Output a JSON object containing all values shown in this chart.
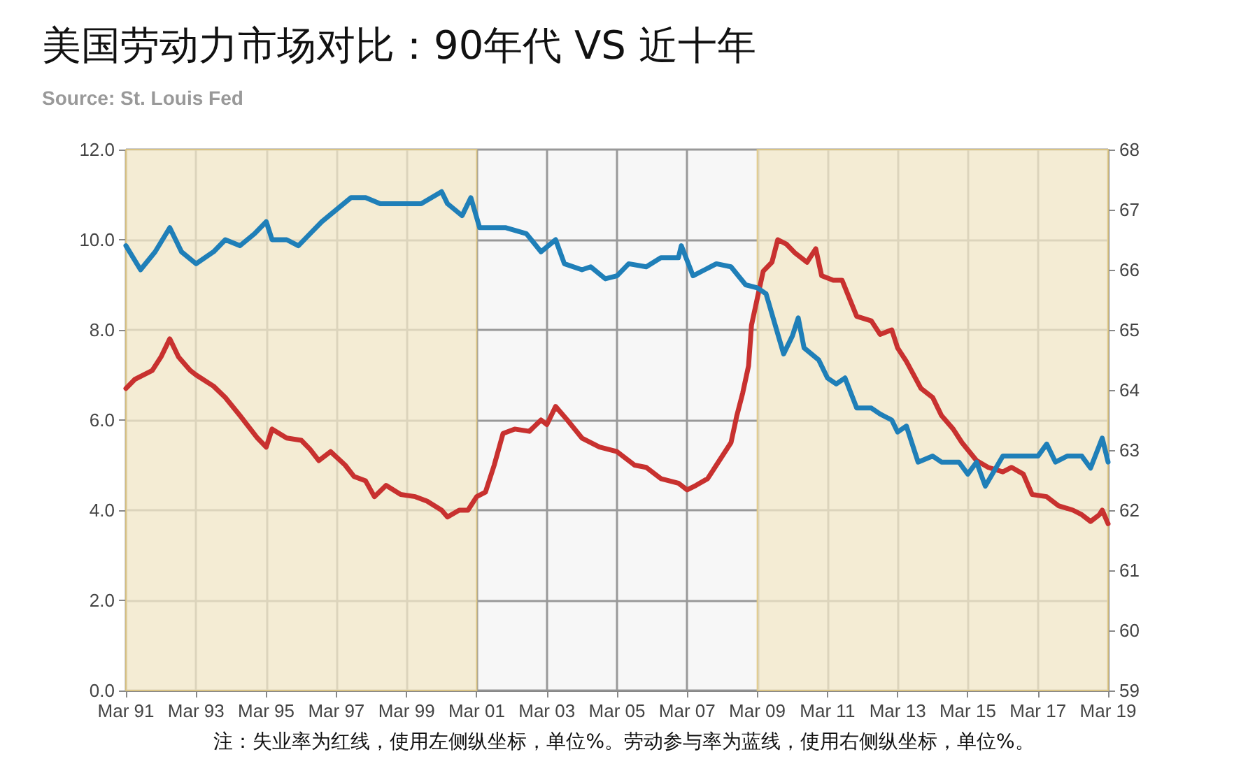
{
  "chart_data": {
    "type": "line",
    "title": "美国劳动力市场对比：90年代 VS 近十年",
    "annotations": [
      "Source: St. Louis Fed",
      "注：失业率为红线，使用左侧纵坐标，单位%。劳动参与率为蓝线，使用右侧纵坐标，单位%。"
    ],
    "xlim": [
      "1991-03",
      "2019-03"
    ],
    "xticks": [
      {
        "value": "1991-03",
        "label": "Mar 91"
      },
      {
        "value": "1993-03",
        "label": "Mar 93"
      },
      {
        "value": "1995-03",
        "label": "Mar 95"
      },
      {
        "value": "1997-03",
        "label": "Mar 97"
      },
      {
        "value": "1999-03",
        "label": "Mar 99"
      },
      {
        "value": "2001-03",
        "label": "Mar 01"
      },
      {
        "value": "2003-03",
        "label": "Mar 03"
      },
      {
        "value": "2005-03",
        "label": "Mar 05"
      },
      {
        "value": "2007-03",
        "label": "Mar 07"
      },
      {
        "value": "2009-03",
        "label": "Mar 09"
      },
      {
        "value": "2011-03",
        "label": "Mar 11"
      },
      {
        "value": "2013-03",
        "label": "Mar 13"
      },
      {
        "value": "2015-03",
        "label": "Mar 15"
      },
      {
        "value": "2017-03",
        "label": "Mar 17"
      },
      {
        "value": "2019-03",
        "label": "Mar 19"
      }
    ],
    "ylim": [
      0,
      12
    ],
    "yticks": [
      {
        "value": 0,
        "label": "0.0"
      },
      {
        "value": 2,
        "label": "2.0"
      },
      {
        "value": 4,
        "label": "4.0"
      },
      {
        "value": 6,
        "label": "6.0"
      },
      {
        "value": 8,
        "label": "8.0"
      },
      {
        "value": 10,
        "label": "10.0"
      },
      {
        "value": 12,
        "label": "12.0"
      }
    ],
    "y2lim": [
      59,
      68
    ],
    "y2ticks": [
      59,
      60,
      61,
      62,
      63,
      64,
      65,
      66,
      67,
      68
    ],
    "grid": true,
    "marker": "none",
    "line_style": "solid",
    "bands": [
      {
        "axis": "x",
        "from": "1991-03",
        "to": "2001-03",
        "color": "#f3e8c8"
      },
      {
        "axis": "x",
        "from": "2009-03",
        "to": "2019-03",
        "color": "#f3e8c8"
      }
    ],
    "series": [
      {
        "color": "#c8312f",
        "x": [
          "1991-03",
          "1991-06",
          "1991-12",
          "1992-03",
          "1992-06",
          "1992-09",
          "1993-01",
          "1993-03",
          "1993-09",
          "1994-01",
          "1994-06",
          "1994-12",
          "1995-03",
          "1995-05",
          "1995-10",
          "1996-03",
          "1996-06",
          "1996-09",
          "1997-01",
          "1997-06",
          "1997-09",
          "1998-01",
          "1998-04",
          "1998-08",
          "1999-01",
          "1999-06",
          "1999-10",
          "2000-03",
          "2000-05",
          "2000-09",
          "2000-12",
          "2001-03",
          "2001-06",
          "2001-09",
          "2001-12",
          "2002-04",
          "2002-09",
          "2003-01",
          "2003-03",
          "2003-06",
          "2003-10",
          "2004-03",
          "2004-09",
          "2005-03",
          "2005-09",
          "2006-01",
          "2006-06",
          "2006-12",
          "2007-03",
          "2007-06",
          "2007-10",
          "2008-01",
          "2008-06",
          "2008-08",
          "2008-10",
          "2008-12",
          "2009-01",
          "2009-03",
          "2009-05",
          "2009-08",
          "2009-10",
          "2010-01",
          "2010-04",
          "2010-08",
          "2010-11",
          "2011-01",
          "2011-05",
          "2011-08",
          "2012-01",
          "2012-06",
          "2012-09",
          "2013-01",
          "2013-03",
          "2013-06",
          "2013-11",
          "2014-03",
          "2014-06",
          "2014-10",
          "2015-01",
          "2015-06",
          "2015-10",
          "2016-03",
          "2016-06",
          "2016-10",
          "2017-01",
          "2017-06",
          "2017-10",
          "2018-03",
          "2018-06",
          "2018-09",
          "2018-12",
          "2019-01",
          "2019-03"
        ],
        "values": [
          6.7,
          6.9,
          7.1,
          7.4,
          7.8,
          7.4,
          7.1,
          7.0,
          6.75,
          6.5,
          6.1,
          5.6,
          5.4,
          5.8,
          5.6,
          5.55,
          5.35,
          5.1,
          5.3,
          5.0,
          4.75,
          4.65,
          4.3,
          4.55,
          4.35,
          4.3,
          4.2,
          4.0,
          3.85,
          4.0,
          4.0,
          4.3,
          4.4,
          5.0,
          5.7,
          5.8,
          5.75,
          6.0,
          5.9,
          6.3,
          6.0,
          5.6,
          5.4,
          5.3,
          5.0,
          4.95,
          4.7,
          4.6,
          4.45,
          4.55,
          4.7,
          5.0,
          5.5,
          6.1,
          6.6,
          7.2,
          8.1,
          8.7,
          9.3,
          9.5,
          10.0,
          9.9,
          9.7,
          9.5,
          9.8,
          9.2,
          9.1,
          9.1,
          8.3,
          8.2,
          7.9,
          8.0,
          7.6,
          7.3,
          6.7,
          6.5,
          6.1,
          5.8,
          5.5,
          5.1,
          4.95,
          4.85,
          4.95,
          4.8,
          4.35,
          4.3,
          4.1,
          4.0,
          3.9,
          3.75,
          3.9,
          4.0,
          3.7
        ]
      },
      {
        "color": "#1f7fb8",
        "axis": "y2",
        "x": [
          "1991-03",
          "1991-08",
          "1992-01",
          "1992-06",
          "1992-10",
          "1993-03",
          "1993-09",
          "1994-01",
          "1994-06",
          "1994-11",
          "1995-03",
          "1995-05",
          "1995-10",
          "1996-02",
          "1996-06",
          "1996-10",
          "1997-03",
          "1997-08",
          "1998-01",
          "1998-06",
          "1998-12",
          "1999-03",
          "1999-08",
          "2000-03",
          "2000-05",
          "2000-10",
          "2001-01",
          "2001-04",
          "2002-01",
          "2002-08",
          "2003-01",
          "2003-06",
          "2003-09",
          "2004-03",
          "2004-06",
          "2004-11",
          "2005-03",
          "2005-07",
          "2006-01",
          "2006-06",
          "2006-12",
          "2007-01",
          "2007-05",
          "2007-09",
          "2008-01",
          "2008-06",
          "2008-11",
          "2009-03",
          "2009-06",
          "2009-09",
          "2009-12",
          "2010-03",
          "2010-05",
          "2010-07",
          "2010-12",
          "2011-03",
          "2011-06",
          "2011-09",
          "2012-01",
          "2012-06",
          "2012-09",
          "2013-01",
          "2013-03",
          "2013-06",
          "2013-10",
          "2014-03",
          "2014-06",
          "2014-12",
          "2015-03",
          "2015-06",
          "2015-09",
          "2016-03",
          "2016-09",
          "2017-03",
          "2017-06",
          "2017-09",
          "2018-01",
          "2018-06",
          "2018-09",
          "2019-01",
          "2019-03"
        ],
        "values": [
          66.4,
          66.0,
          66.3,
          66.7,
          66.3,
          66.1,
          66.3,
          66.5,
          66.4,
          66.6,
          66.8,
          66.5,
          66.5,
          66.4,
          66.6,
          66.8,
          67.0,
          67.2,
          67.2,
          67.1,
          67.1,
          67.1,
          67.1,
          67.3,
          67.1,
          66.9,
          67.2,
          66.7,
          66.7,
          66.6,
          66.3,
          66.5,
          66.1,
          66.0,
          66.05,
          65.85,
          65.9,
          66.1,
          66.05,
          66.2,
          66.2,
          66.4,
          65.9,
          66.0,
          66.1,
          66.05,
          65.75,
          65.7,
          65.6,
          65.1,
          64.6,
          64.9,
          65.2,
          64.7,
          64.5,
          64.2,
          64.1,
          64.2,
          63.7,
          63.7,
          63.6,
          63.5,
          63.3,
          63.4,
          62.8,
          62.9,
          62.8,
          62.8,
          62.6,
          62.8,
          62.4,
          62.9,
          62.9,
          62.9,
          63.1,
          62.8,
          62.9,
          62.9,
          62.7,
          63.2,
          62.8
        ]
      }
    ]
  }
}
